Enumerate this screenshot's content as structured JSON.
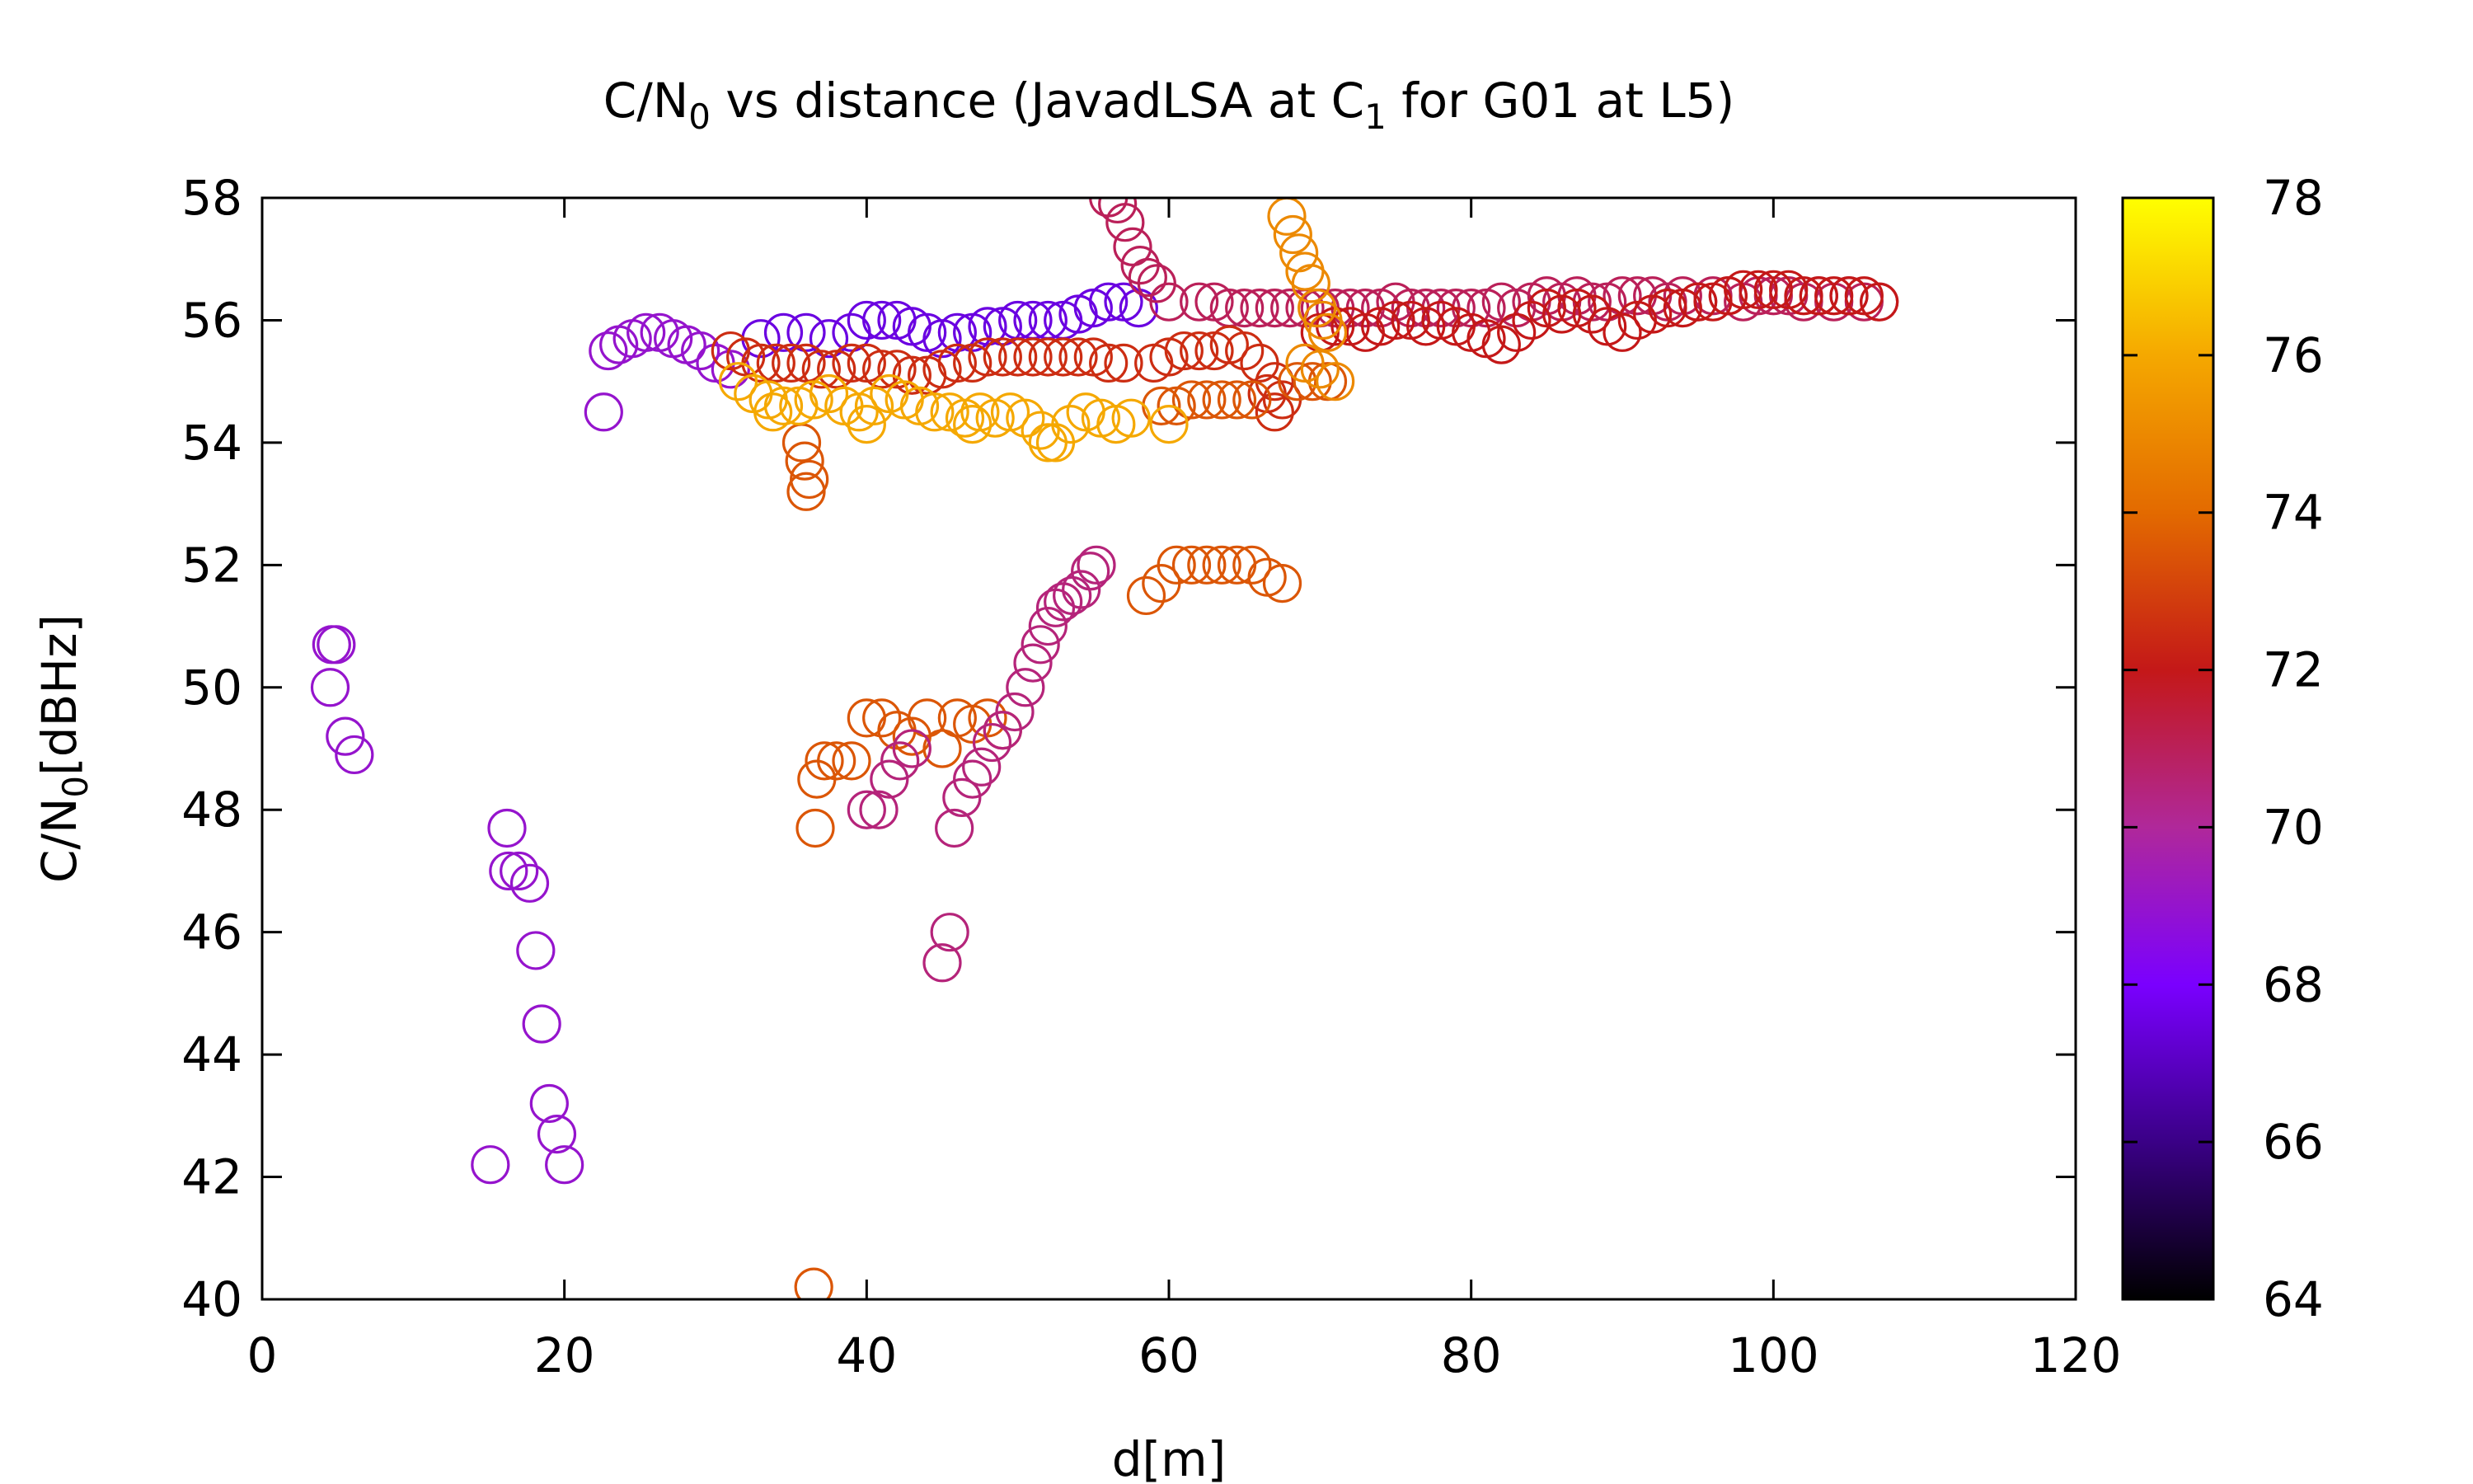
{
  "chart_data": {
    "type": "scatter",
    "title": {
      "pre": "C/N",
      "sub1": "0",
      "mid": " vs distance (JavadLSA at C",
      "sub2": "1",
      "post": " for G01 at L5)"
    },
    "xlabel": "d[m]",
    "ylabel": {
      "pre": "C/N",
      "sub": "0",
      "post": "[dBHz]"
    },
    "xlim": [
      0,
      120
    ],
    "ylim": [
      40,
      58
    ],
    "x_ticks": [
      "0",
      "20",
      "40",
      "60",
      "80",
      "100",
      "120"
    ],
    "y_ticks": [
      "40",
      "42",
      "44",
      "46",
      "48",
      "50",
      "52",
      "54",
      "56",
      "58"
    ],
    "marker": "open-circle",
    "colorbar": {
      "range": [
        64,
        78
      ],
      "ticks": [
        "64",
        "66",
        "68",
        "70",
        "72",
        "74",
        "76",
        "78"
      ],
      "palette": [
        "#000000",
        "#3a0086",
        "#7a00ff",
        "#b0289a",
        "#c41818",
        "#e36a00",
        "#f5a800",
        "#ffff00"
      ],
      "position": "right"
    },
    "series": [
      {
        "color_value": 69.0,
        "points": [
          [
            4.6,
            50.7
          ],
          [
            4.9,
            50.7
          ],
          [
            4.5,
            50.0
          ],
          [
            5.5,
            49.2
          ],
          [
            6.1,
            48.9
          ],
          [
            16.2,
            47.7
          ],
          [
            16.3,
            47.0
          ],
          [
            17.0,
            47.0
          ],
          [
            17.7,
            46.8
          ],
          [
            18.1,
            45.7
          ],
          [
            18.5,
            44.5
          ],
          [
            19.0,
            43.2
          ],
          [
            19.5,
            42.7
          ],
          [
            20.0,
            42.2
          ],
          [
            15.1,
            42.2
          ]
        ]
      },
      {
        "color_value": 69.0,
        "points": [
          [
            22.6,
            54.5
          ],
          [
            22.9,
            55.5
          ],
          [
            23.6,
            55.6
          ],
          [
            24.5,
            55.7
          ],
          [
            25.4,
            55.8
          ],
          [
            26.3,
            55.8
          ],
          [
            27.2,
            55.7
          ],
          [
            28.1,
            55.6
          ],
          [
            29.0,
            55.5
          ],
          [
            30.0,
            55.3
          ],
          [
            31.0,
            55.2
          ]
        ]
      },
      {
        "color_value": 67.5,
        "points": [
          [
            33.0,
            55.7
          ],
          [
            34.5,
            55.8
          ],
          [
            36.0,
            55.8
          ],
          [
            37.5,
            55.7
          ],
          [
            39.0,
            55.8
          ],
          [
            40.0,
            56.0
          ],
          [
            41.0,
            56.0
          ],
          [
            42.0,
            56.0
          ],
          [
            43.0,
            55.9
          ],
          [
            44.0,
            55.8
          ],
          [
            45.0,
            55.7
          ],
          [
            46.0,
            55.8
          ],
          [
            47.0,
            55.8
          ],
          [
            48.0,
            55.9
          ],
          [
            49.0,
            55.9
          ],
          [
            50.0,
            56.0
          ],
          [
            51.0,
            56.0
          ],
          [
            52.0,
            56.0
          ],
          [
            53.0,
            56.0
          ],
          [
            54.0,
            56.1
          ],
          [
            55.0,
            56.2
          ],
          [
            56.0,
            56.3
          ],
          [
            57.0,
            56.3
          ],
          [
            58.0,
            56.2
          ]
        ]
      },
      {
        "color_value": 71.0,
        "points": [
          [
            56.0,
            58.0
          ],
          [
            56.6,
            57.9
          ],
          [
            57.1,
            57.6
          ],
          [
            57.6,
            57.2
          ],
          [
            58.1,
            56.9
          ],
          [
            58.6,
            56.7
          ],
          [
            59.2,
            56.6
          ],
          [
            60.0,
            56.3
          ],
          [
            62.0,
            56.3
          ],
          [
            63.0,
            56.3
          ],
          [
            64.0,
            56.2
          ],
          [
            65.0,
            56.2
          ],
          [
            66.0,
            56.2
          ],
          [
            67.0,
            56.2
          ],
          [
            68.0,
            56.2
          ],
          [
            69.0,
            56.2
          ],
          [
            70.0,
            56.2
          ],
          [
            71.0,
            56.2
          ],
          [
            72.0,
            56.2
          ],
          [
            73.0,
            56.2
          ],
          [
            74.0,
            56.2
          ],
          [
            75.0,
            56.3
          ],
          [
            76.0,
            56.2
          ],
          [
            77.0,
            56.2
          ],
          [
            78.0,
            56.2
          ],
          [
            79.0,
            56.2
          ],
          [
            80.0,
            56.2
          ],
          [
            81.0,
            56.2
          ],
          [
            82.0,
            56.3
          ],
          [
            83.0,
            56.2
          ],
          [
            84.0,
            56.3
          ],
          [
            85.0,
            56.4
          ],
          [
            86.0,
            56.3
          ],
          [
            87.0,
            56.4
          ],
          [
            88.0,
            56.3
          ],
          [
            89.0,
            56.3
          ],
          [
            90.0,
            56.4
          ],
          [
            91.0,
            56.4
          ],
          [
            92.0,
            56.4
          ],
          [
            93.0,
            56.3
          ],
          [
            94.0,
            56.4
          ],
          [
            95.0,
            56.3
          ],
          [
            96.0,
            56.4
          ],
          [
            97.0,
            56.4
          ],
          [
            98.0,
            56.3
          ],
          [
            99.0,
            56.4
          ],
          [
            100.0,
            56.4
          ],
          [
            101.0,
            56.4
          ],
          [
            102.0,
            56.3
          ],
          [
            103.0,
            56.4
          ],
          [
            104.0,
            56.3
          ],
          [
            105.0,
            56.4
          ],
          [
            106.0,
            56.3
          ],
          [
            107.0,
            56.3
          ]
        ]
      },
      {
        "color_value": 72.0,
        "points": [
          [
            70.0,
            55.8
          ],
          [
            71.0,
            55.9
          ],
          [
            72.0,
            55.9
          ],
          [
            73.0,
            55.8
          ],
          [
            74.0,
            55.9
          ],
          [
            75.0,
            56.0
          ],
          [
            76.0,
            56.0
          ],
          [
            77.0,
            55.9
          ],
          [
            78.0,
            56.0
          ],
          [
            79.0,
            55.9
          ],
          [
            80.0,
            55.8
          ],
          [
            81.0,
            55.7
          ],
          [
            82.0,
            55.6
          ],
          [
            83.0,
            55.8
          ],
          [
            84.0,
            56.0
          ],
          [
            85.0,
            56.2
          ],
          [
            86.0,
            56.1
          ],
          [
            87.0,
            56.2
          ],
          [
            88.0,
            56.1
          ],
          [
            89.0,
            55.9
          ],
          [
            90.0,
            55.8
          ],
          [
            91.0,
            56.0
          ],
          [
            92.0,
            56.1
          ],
          [
            93.0,
            56.2
          ],
          [
            94.0,
            56.2
          ],
          [
            95.0,
            56.3
          ],
          [
            96.0,
            56.3
          ],
          [
            97.0,
            56.4
          ],
          [
            98.0,
            56.5
          ],
          [
            99.0,
            56.5
          ],
          [
            100.0,
            56.5
          ],
          [
            101.0,
            56.5
          ],
          [
            102.0,
            56.4
          ],
          [
            103.0,
            56.4
          ],
          [
            104.0,
            56.4
          ],
          [
            105.0,
            56.4
          ],
          [
            106.0,
            56.4
          ],
          [
            107.0,
            56.3
          ]
        ]
      },
      {
        "color_value": 72.5,
        "points": [
          [
            31.0,
            55.5
          ],
          [
            32.0,
            55.4
          ],
          [
            33.0,
            55.3
          ],
          [
            34.0,
            55.3
          ],
          [
            35.0,
            55.3
          ],
          [
            36.0,
            55.3
          ],
          [
            37.0,
            55.2
          ],
          [
            38.0,
            55.2
          ],
          [
            39.0,
            55.3
          ],
          [
            40.0,
            55.3
          ],
          [
            41.0,
            55.2
          ],
          [
            42.0,
            55.2
          ],
          [
            43.0,
            55.1
          ],
          [
            44.0,
            55.1
          ],
          [
            45.0,
            55.2
          ],
          [
            46.0,
            55.3
          ],
          [
            47.0,
            55.3
          ],
          [
            48.0,
            55.4
          ],
          [
            49.0,
            55.4
          ],
          [
            50.0,
            55.4
          ],
          [
            51.0,
            55.4
          ],
          [
            52.0,
            55.4
          ],
          [
            53.0,
            55.4
          ],
          [
            54.0,
            55.4
          ],
          [
            55.0,
            55.4
          ],
          [
            56.0,
            55.3
          ],
          [
            57.0,
            55.3
          ],
          [
            59.0,
            55.3
          ],
          [
            60.0,
            55.4
          ],
          [
            61.0,
            55.5
          ],
          [
            62.0,
            55.5
          ],
          [
            63.0,
            55.5
          ],
          [
            64.0,
            55.6
          ],
          [
            65.0,
            55.5
          ],
          [
            66.0,
            55.3
          ],
          [
            67.0,
            55.0
          ],
          [
            67.5,
            54.7
          ],
          [
            67.0,
            54.5
          ],
          [
            66.5,
            54.8
          ]
        ]
      },
      {
        "color_value": 73.5,
        "points": [
          [
            35.7,
            54.0
          ],
          [
            35.9,
            53.7
          ],
          [
            36.2,
            53.4
          ],
          [
            36.0,
            53.2
          ],
          [
            36.6,
            47.7
          ],
          [
            36.7,
            48.5
          ],
          [
            37.2,
            48.8
          ],
          [
            38.0,
            48.8
          ],
          [
            39.0,
            48.8
          ],
          [
            40.0,
            49.5
          ],
          [
            41.0,
            49.5
          ],
          [
            42.0,
            49.3
          ],
          [
            43.0,
            49.2
          ],
          [
            44.0,
            49.5
          ],
          [
            45.0,
            49.0
          ],
          [
            46.0,
            49.5
          ],
          [
            47.0,
            49.4
          ],
          [
            48.0,
            49.5
          ],
          [
            49.0,
            49.3
          ],
          [
            36.5,
            40.2
          ],
          [
            58.5,
            51.5
          ],
          [
            59.5,
            51.7
          ],
          [
            60.5,
            52.0
          ],
          [
            61.5,
            52.0
          ],
          [
            62.5,
            52.0
          ],
          [
            63.5,
            52.0
          ],
          [
            64.5,
            52.0
          ],
          [
            65.5,
            52.0
          ],
          [
            66.5,
            51.8
          ],
          [
            67.5,
            51.7
          ],
          [
            59.5,
            54.6
          ],
          [
            60.5,
            54.6
          ],
          [
            61.5,
            54.7
          ],
          [
            62.5,
            54.7
          ],
          [
            63.5,
            54.7
          ],
          [
            64.5,
            54.7
          ],
          [
            65.5,
            54.7
          ],
          [
            68.5,
            55.0
          ],
          [
            69.5,
            55.0
          ],
          [
            70.5,
            55.0
          ]
        ]
      },
      {
        "color_value": 70.5,
        "points": [
          [
            45.0,
            45.5
          ],
          [
            45.5,
            46.0
          ],
          [
            40.0,
            48.0
          ],
          [
            40.8,
            48.0
          ],
          [
            41.5,
            48.5
          ],
          [
            42.2,
            48.8
          ],
          [
            43.0,
            49.0
          ],
          [
            45.8,
            47.7
          ],
          [
            46.3,
            48.2
          ],
          [
            47.0,
            48.5
          ],
          [
            47.6,
            48.7
          ],
          [
            48.3,
            49.1
          ],
          [
            49.0,
            49.3
          ],
          [
            49.8,
            49.6
          ],
          [
            50.5,
            50.0
          ],
          [
            51.0,
            50.4
          ],
          [
            51.5,
            50.7
          ],
          [
            52.0,
            51.0
          ],
          [
            52.5,
            51.3
          ],
          [
            53.0,
            51.4
          ],
          [
            53.6,
            51.5
          ],
          [
            54.2,
            51.6
          ],
          [
            54.8,
            51.9
          ],
          [
            55.2,
            52.0
          ]
        ]
      },
      {
        "color_value": 75.0,
        "points": [
          [
            67.8,
            57.7
          ],
          [
            68.2,
            57.4
          ],
          [
            68.6,
            57.1
          ],
          [
            69.0,
            56.8
          ],
          [
            69.4,
            56.6
          ],
          [
            69.8,
            56.2
          ],
          [
            70.2,
            56.0
          ],
          [
            70.5,
            55.8
          ],
          [
            69.0,
            55.3
          ],
          [
            70.0,
            55.2
          ],
          [
            71.0,
            55.0
          ]
        ]
      },
      {
        "color_value": 76.0,
        "points": [
          [
            31.5,
            55.0
          ],
          [
            32.5,
            54.8
          ],
          [
            33.5,
            54.7
          ],
          [
            34.5,
            54.6
          ],
          [
            35.5,
            54.6
          ],
          [
            36.5,
            54.7
          ],
          [
            37.5,
            54.8
          ],
          [
            38.5,
            54.6
          ],
          [
            39.5,
            54.5
          ],
          [
            40.5,
            54.6
          ],
          [
            41.5,
            54.8
          ],
          [
            42.5,
            54.7
          ],
          [
            43.5,
            54.6
          ],
          [
            44.5,
            54.5
          ],
          [
            45.5,
            54.5
          ],
          [
            46.5,
            54.4
          ],
          [
            47.5,
            54.5
          ],
          [
            48.5,
            54.4
          ],
          [
            49.5,
            54.5
          ],
          [
            50.5,
            54.4
          ],
          [
            51.5,
            54.2
          ],
          [
            52.5,
            54.0
          ],
          [
            53.5,
            54.3
          ],
          [
            54.5,
            54.5
          ],
          [
            55.5,
            54.4
          ],
          [
            56.5,
            54.3
          ],
          [
            57.5,
            54.4
          ],
          [
            33.8,
            54.5
          ],
          [
            40.0,
            54.3
          ],
          [
            47.0,
            54.3
          ],
          [
            52.0,
            54.0
          ],
          [
            60.0,
            54.3
          ]
        ]
      }
    ]
  }
}
